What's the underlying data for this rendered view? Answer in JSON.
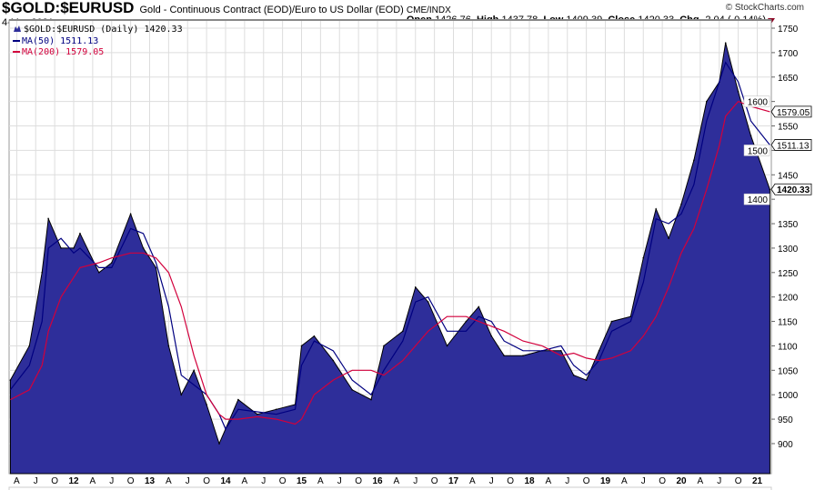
{
  "header": {
    "symbol": "$GOLD:$EURUSD",
    "description": "Gold - Continuous Contract (EOD)/Euro to US Dollar (EOD)",
    "exchange": "CME/INDX",
    "date": "4-Mar-2021",
    "brand": "© StockCharts.com",
    "open_label": "Open",
    "open": "1426.76",
    "high_label": "High",
    "high": "1437.78",
    "low_label": "Low",
    "low": "1409.39",
    "close_label": "Close",
    "close": "1420.33",
    "chg_label": "Chg",
    "chg": "-2.04 (-0.14%)"
  },
  "legend": {
    "price": "$GOLD:$EURUSD (Daily) 1420.33",
    "ma50": "MA(50) 1511.13",
    "ma200": "MA(200) 1579.05"
  },
  "colors": {
    "area": "#2E2E9A",
    "ma50": "#000080",
    "ma200": "#D2003C",
    "grid": "#dddddd"
  },
  "chart_data": {
    "type": "area",
    "title": "$GOLD:$EURUSD (Daily)",
    "ylim": [
      860,
      1760
    ],
    "y_ticks": [
      900,
      950,
      1000,
      1050,
      1100,
      1150,
      1200,
      1250,
      1300,
      1350,
      1400,
      1450,
      1500,
      1550,
      1600,
      1650,
      1700,
      1750
    ],
    "x_tick_labels": [
      "A",
      "J",
      "O",
      "12",
      "A",
      "J",
      "O",
      "13",
      "A",
      "J",
      "O",
      "14",
      "A",
      "J",
      "O",
      "15",
      "A",
      "J",
      "O",
      "16",
      "A",
      "J",
      "O",
      "17",
      "A",
      "J",
      "O",
      "18",
      "A",
      "J",
      "O",
      "19",
      "A",
      "J",
      "O",
      "20",
      "A",
      "J",
      "O",
      "21"
    ],
    "last_value_labels": [
      "1579.05",
      "1511.13",
      "1420.33"
    ],
    "x": [
      "2011-03",
      "2011-06",
      "2011-08",
      "2011-09",
      "2011-11",
      "2012-01",
      "2012-02",
      "2012-05",
      "2012-07",
      "2012-10",
      "2012-12",
      "2013-02",
      "2013-04",
      "2013-06",
      "2013-08",
      "2013-10",
      "2013-12",
      "2014-01",
      "2014-03",
      "2014-06",
      "2014-09",
      "2014-12",
      "2015-01",
      "2015-03",
      "2015-06",
      "2015-09",
      "2015-12",
      "2016-02",
      "2016-05",
      "2016-07",
      "2016-09",
      "2016-12",
      "2017-03",
      "2017-05",
      "2017-07",
      "2017-09",
      "2017-12",
      "2018-03",
      "2018-06",
      "2018-08",
      "2018-10",
      "2018-12",
      "2019-02",
      "2019-05",
      "2019-07",
      "2019-09",
      "2019-11",
      "2020-01",
      "2020-03",
      "2020-05",
      "2020-07",
      "2020-08",
      "2020-10",
      "2020-12",
      "2021-03"
    ],
    "series": [
      {
        "name": "$GOLD:$EURUSD",
        "values": [
          1030,
          1100,
          1250,
          1360,
          1300,
          1300,
          1330,
          1250,
          1270,
          1370,
          1300,
          1260,
          1100,
          1000,
          1050,
          980,
          900,
          930,
          990,
          960,
          970,
          980,
          1100,
          1120,
          1070,
          1010,
          990,
          1100,
          1130,
          1220,
          1190,
          1100,
          1150,
          1180,
          1120,
          1080,
          1080,
          1090,
          1090,
          1040,
          1030,
          1090,
          1150,
          1160,
          1280,
          1380,
          1320,
          1390,
          1480,
          1600,
          1640,
          1720,
          1620,
          1530,
          1420
        ]
      },
      {
        "name": "MA(50)",
        "values": [
          1010,
          1060,
          1150,
          1300,
          1320,
          1290,
          1300,
          1260,
          1260,
          1340,
          1330,
          1270,
          1180,
          1040,
          1020,
          1000,
          960,
          930,
          970,
          965,
          960,
          970,
          1060,
          1110,
          1090,
          1030,
          1000,
          1050,
          1110,
          1190,
          1200,
          1130,
          1130,
          1160,
          1150,
          1110,
          1090,
          1090,
          1100,
          1060,
          1040,
          1070,
          1130,
          1150,
          1230,
          1360,
          1350,
          1370,
          1430,
          1560,
          1640,
          1680,
          1640,
          1560,
          1511
        ]
      },
      {
        "name": "MA(200)",
        "values": [
          990,
          1010,
          1060,
          1130,
          1200,
          1240,
          1260,
          1270,
          1280,
          1290,
          1290,
          1280,
          1250,
          1180,
          1080,
          1000,
          960,
          950,
          950,
          955,
          950,
          940,
          950,
          1000,
          1030,
          1050,
          1050,
          1040,
          1070,
          1100,
          1130,
          1160,
          1160,
          1150,
          1140,
          1130,
          1110,
          1100,
          1080,
          1085,
          1075,
          1070,
          1075,
          1090,
          1120,
          1160,
          1220,
          1290,
          1340,
          1420,
          1510,
          1570,
          1600,
          1590,
          1579
        ]
      }
    ]
  }
}
